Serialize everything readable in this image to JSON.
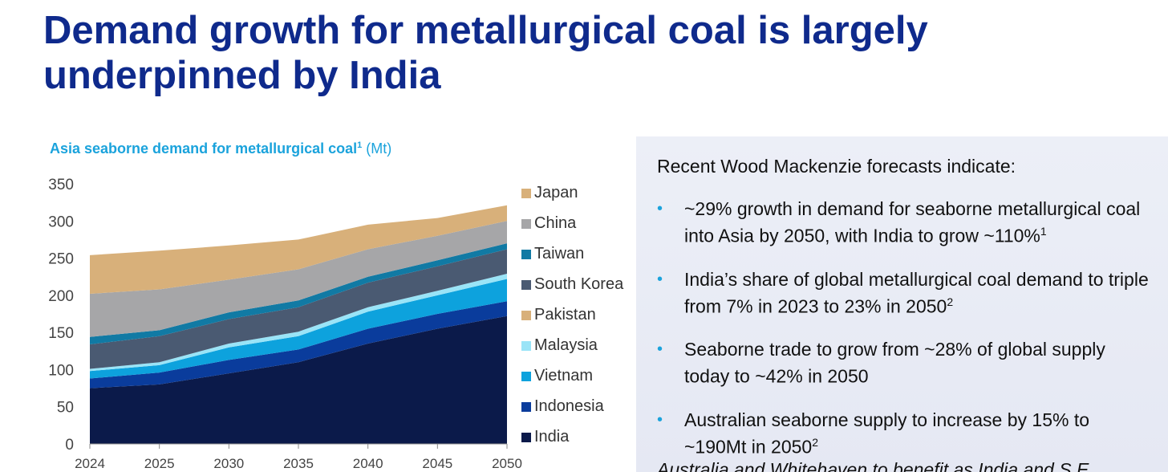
{
  "title": "Demand growth for metallurgical coal is largely underpinned by India",
  "chart_title_bold": "Asia seaborne demand for metallurgical coal",
  "chart_title_sup": "1",
  "chart_title_unit": "(Mt)",
  "panel": {
    "intro": "Recent Wood Mackenzie forecasts indicate:",
    "bullets": [
      {
        "text": "~29% growth in demand for seaborne metallurgical coal into Asia by 2050, with India to grow ~110%",
        "sup": "1"
      },
      {
        "text": "India’s share of global metallurgical coal demand to triple from 7% in 2023 to 23% in 2050",
        "sup": "2"
      },
      {
        "text": "Seaborne trade to grow from ~28% of global supply today to ~42% in 2050",
        "sup": ""
      },
      {
        "text": "Australian seaborne supply to increase by 15% to ~190Mt in 2050",
        "sup": "2"
      }
    ],
    "footer": "Australia and Whitehaven to benefit as India and S.E."
  },
  "chart_data": {
    "type": "area",
    "stacked": true,
    "categories": [
      "2024",
      "2025",
      "2030",
      "2035",
      "2040",
      "2045",
      "2050"
    ],
    "ylim": [
      0,
      350
    ],
    "yticks": [
      0,
      50,
      100,
      150,
      200,
      250,
      300,
      350
    ],
    "series": [
      {
        "name": "India",
        "color": "#0b1a4a",
        "values": [
          75,
          80,
          95,
          110,
          135,
          155,
          172
        ]
      },
      {
        "name": "Indonesia",
        "color": "#0a3c9c",
        "values": [
          13,
          16,
          18,
          17,
          20,
          20,
          20
        ]
      },
      {
        "name": "Vietnam",
        "color": "#0da2dd",
        "values": [
          10,
          10,
          17,
          18,
          23,
          25,
          30
        ]
      },
      {
        "name": "Malaysia",
        "color": "#9ae4f7",
        "values": [
          3,
          4,
          5,
          6,
          6,
          6,
          7
        ]
      },
      {
        "name": "Pakistan",
        "color": "#d8b07a",
        "values": [
          0,
          0,
          0,
          0,
          0,
          0,
          0
        ]
      },
      {
        "name": "South Korea",
        "color": "#4a5a72",
        "values": [
          33,
          35,
          33,
          33,
          33,
          33,
          33
        ]
      },
      {
        "name": "Taiwan",
        "color": "#117aa4",
        "values": [
          10,
          8,
          9,
          9,
          8,
          8,
          8
        ]
      },
      {
        "name": "China",
        "color": "#a6a6a8",
        "values": [
          58,
          55,
          44,
          42,
          37,
          33,
          30
        ]
      },
      {
        "name": "Japan",
        "color": "#d8b07a",
        "values": [
          52,
          52,
          46,
          40,
          33,
          24,
          21
        ]
      }
    ],
    "legend_order": [
      "Japan",
      "China",
      "Taiwan",
      "South Korea",
      "Pakistan",
      "Malaysia",
      "Vietnam",
      "Indonesia",
      "India"
    ]
  }
}
